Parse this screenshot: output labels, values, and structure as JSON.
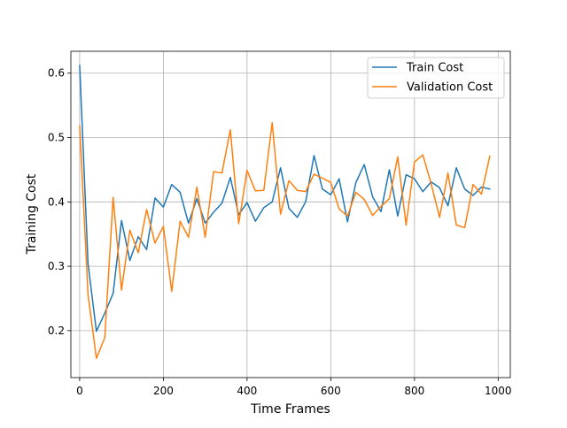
{
  "chart_data": {
    "type": "line",
    "title": "",
    "xlabel": "Time Frames",
    "ylabel": "Training Cost",
    "xlim": [
      -21,
      1029
    ],
    "ylim": [
      0.127,
      0.634
    ],
    "x_ticks": [
      0,
      200,
      400,
      600,
      800,
      1000
    ],
    "y_ticks": [
      0.2,
      0.3,
      0.4,
      0.5,
      0.6
    ],
    "x_tick_labels": [
      "0",
      "200",
      "400",
      "600",
      "800",
      "1000"
    ],
    "y_tick_labels": [
      "0.2",
      "0.3",
      "0.4",
      "0.5",
      "0.6"
    ],
    "grid": true,
    "legend_position": "top-right",
    "x": [
      0,
      20,
      40,
      60,
      80,
      100,
      120,
      140,
      160,
      180,
      200,
      220,
      240,
      260,
      280,
      300,
      320,
      340,
      360,
      380,
      400,
      420,
      440,
      460,
      480,
      500,
      520,
      540,
      560,
      580,
      600,
      620,
      640,
      660,
      680,
      700,
      720,
      740,
      760,
      780,
      800,
      820,
      840,
      860,
      880,
      900,
      920,
      940,
      960,
      980
    ],
    "series": [
      {
        "name": "Train Cost",
        "color": "#1f77b4",
        "values": [
          0.612,
          0.304,
          0.199,
          0.227,
          0.258,
          0.371,
          0.309,
          0.346,
          0.326,
          0.406,
          0.392,
          0.427,
          0.415,
          0.367,
          0.405,
          0.367,
          0.384,
          0.398,
          0.438,
          0.38,
          0.399,
          0.37,
          0.391,
          0.4,
          0.453,
          0.39,
          0.376,
          0.4,
          0.472,
          0.42,
          0.411,
          0.436,
          0.369,
          0.43,
          0.458,
          0.408,
          0.385,
          0.45,
          0.378,
          0.442,
          0.436,
          0.416,
          0.431,
          0.422,
          0.394,
          0.453,
          0.42,
          0.41,
          0.423,
          0.42
        ]
      },
      {
        "name": "Validation Cost",
        "color": "#ff7f0e",
        "values": [
          0.518,
          0.256,
          0.157,
          0.189,
          0.407,
          0.263,
          0.356,
          0.321,
          0.388,
          0.336,
          0.362,
          0.261,
          0.37,
          0.345,
          0.423,
          0.345,
          0.447,
          0.445,
          0.512,
          0.366,
          0.449,
          0.417,
          0.418,
          0.523,
          0.381,
          0.433,
          0.418,
          0.416,
          0.443,
          0.437,
          0.43,
          0.389,
          0.378,
          0.415,
          0.404,
          0.379,
          0.393,
          0.405,
          0.47,
          0.364,
          0.462,
          0.473,
          0.428,
          0.376,
          0.445,
          0.364,
          0.36,
          0.427,
          0.412,
          0.471
        ]
      }
    ]
  }
}
